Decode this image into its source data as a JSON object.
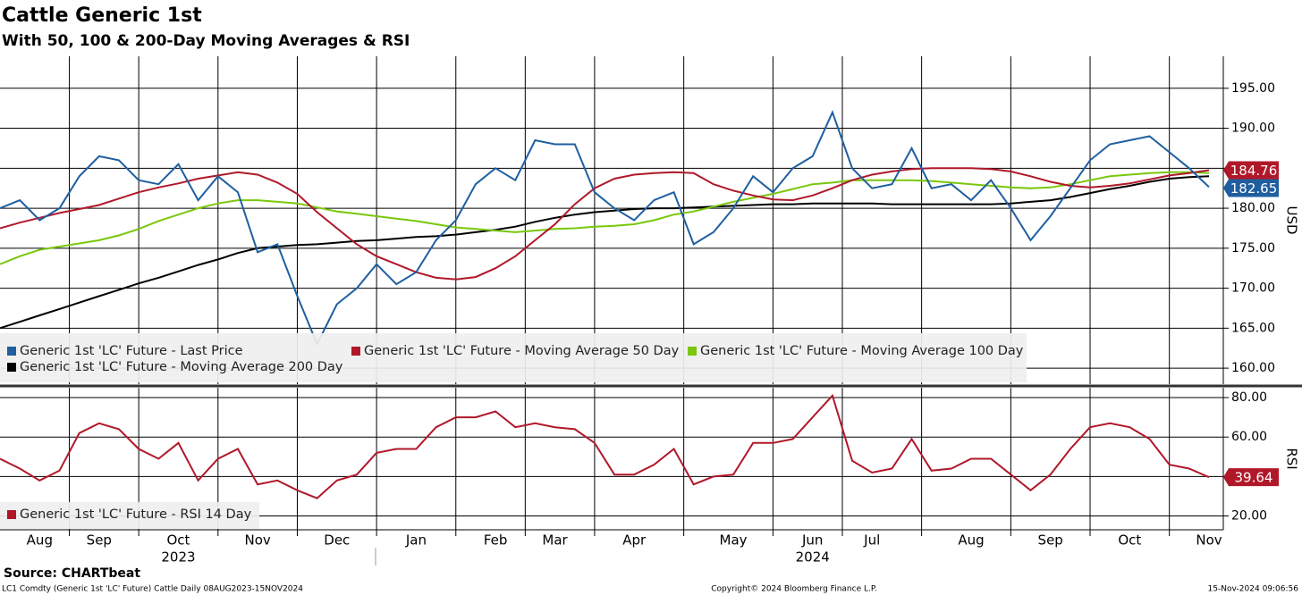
{
  "chart_data": [
    {
      "type": "line",
      "title": "Cattle Generic 1st",
      "subtitle": "With 50, 100 & 200-Day Moving Averages & RSI",
      "ylabel": "USD",
      "ylim": [
        158,
        199
      ],
      "yticks": [
        {
          "value": 160,
          "label": "160.00"
        },
        {
          "value": 165,
          "label": "165.00"
        },
        {
          "value": 170,
          "label": "170.00"
        },
        {
          "value": 175,
          "label": "175.00"
        },
        {
          "value": 180,
          "label": "180.00"
        },
        {
          "value": 185,
          "label": "185.00"
        },
        {
          "value": 190,
          "label": "190.00"
        },
        {
          "value": 195,
          "label": "195.00"
        }
      ],
      "grid": true,
      "series": [
        {
          "name": "Generic 1st 'LC' Future - Last Price",
          "color": "#1f5fa0",
          "last_label": true,
          "values": [
            180,
            181,
            178.5,
            180,
            184,
            186.5,
            186,
            183.5,
            183,
            185.5,
            181,
            184,
            182,
            174.5,
            175.5,
            169,
            163,
            168,
            170,
            173,
            170.5,
            172,
            176,
            178.5,
            183,
            185,
            183.5,
            188.5,
            188,
            188,
            182,
            180,
            178.5,
            181,
            182,
            175.5,
            177,
            180,
            184,
            182,
            185,
            186.5,
            192,
            185,
            182.5,
            183,
            187.5,
            182.5,
            183,
            181,
            183.5,
            180,
            176,
            179,
            182.5,
            186,
            188,
            188.5,
            189,
            187,
            185,
            182.65
          ]
        },
        {
          "name": "Generic 1st 'LC' Future - Moving Average 50 Day",
          "color": "#b0182a",
          "last_label": true,
          "values": [
            177.5,
            178.2,
            178.8,
            179.4,
            179.9,
            180.4,
            181.2,
            182,
            182.6,
            183.1,
            183.7,
            184.1,
            184.5,
            184.2,
            183.2,
            181.8,
            179.5,
            177.5,
            175.5,
            174,
            173,
            172,
            171.3,
            171.1,
            171.4,
            172.5,
            174,
            176,
            178,
            180.5,
            182.5,
            183.7,
            184.2,
            184.4,
            184.5,
            184.4,
            183,
            182.2,
            181.6,
            181.1,
            181,
            181.6,
            182.5,
            183.5,
            184.2,
            184.6,
            184.9,
            185,
            185,
            185,
            184.9,
            184.6,
            184,
            183.3,
            182.8,
            182.6,
            182.8,
            183.1,
            183.6,
            184.1,
            184.4,
            184.76
          ]
        },
        {
          "name": "Generic 1st 'LC' Future - Moving Average 100 Day",
          "color": "#7ac70c",
          "last_label": false,
          "values": [
            173,
            174,
            174.8,
            175.2,
            175.6,
            176,
            176.6,
            177.4,
            178.4,
            179.2,
            180,
            180.6,
            181,
            181,
            180.8,
            180.6,
            180.1,
            179.6,
            179.3,
            179,
            178.7,
            178.4,
            178,
            177.6,
            177.4,
            177.2,
            177,
            177.2,
            177.4,
            177.5,
            177.7,
            177.8,
            178,
            178.5,
            179.2,
            179.6,
            180.2,
            180.8,
            181.3,
            181.8,
            182.4,
            183,
            183.2,
            183.5,
            183.5,
            183.5,
            183.5,
            183.4,
            183.2,
            183,
            182.8,
            182.6,
            182.5,
            182.6,
            183,
            183.5,
            184,
            184.2,
            184.4,
            184.5,
            184.5,
            184.4
          ]
        },
        {
          "name": "Generic 1st 'LC' Future - Moving Average 200 Day",
          "color": "#000000",
          "last_label": false,
          "values": [
            165,
            165.8,
            166.6,
            167.4,
            168.2,
            169,
            169.8,
            170.6,
            171.3,
            172.1,
            172.9,
            173.6,
            174.4,
            175,
            175.2,
            175.4,
            175.5,
            175.7,
            175.9,
            176,
            176.2,
            176.4,
            176.5,
            176.7,
            177,
            177.3,
            177.7,
            178.3,
            178.8,
            179.2,
            179.5,
            179.7,
            179.9,
            180,
            180,
            180.1,
            180.2,
            180.3,
            180.4,
            180.5,
            180.5,
            180.6,
            180.6,
            180.6,
            180.6,
            180.5,
            180.5,
            180.5,
            180.5,
            180.5,
            180.5,
            180.6,
            180.8,
            181,
            181.4,
            181.9,
            182.4,
            182.8,
            183.3,
            183.7,
            183.9,
            184
          ]
        }
      ]
    },
    {
      "type": "line",
      "ylabel": "RSI",
      "ylim": [
        13,
        85
      ],
      "yticks": [
        {
          "value": 20,
          "label": "20.00"
        },
        {
          "value": 40,
          "label": "40.00"
        },
        {
          "value": 60,
          "label": "60.00"
        },
        {
          "value": 80,
          "label": "80.00"
        }
      ],
      "grid": true,
      "categories": [
        null,
        null,
        "Aug",
        null,
        null,
        "Sep",
        null,
        null,
        null,
        "Oct",
        null,
        null,
        null,
        "Nov",
        null,
        null,
        null,
        "Dec",
        null,
        null,
        null,
        "Jan",
        null,
        null,
        null,
        "Feb",
        null,
        null,
        "Mar",
        null,
        null,
        null,
        "Apr",
        null,
        null,
        null,
        null,
        "May",
        null,
        null,
        null,
        "Jun",
        null,
        null,
        "Jul",
        null,
        null,
        null,
        null,
        "Aug",
        null,
        null,
        null,
        "Sep",
        null,
        null,
        null,
        "Oct",
        null,
        null,
        null,
        "Nov"
      ],
      "year_labels": [
        null,
        null,
        null,
        null,
        null,
        null,
        null,
        null,
        null,
        "2023",
        null,
        null,
        null,
        null,
        null,
        null,
        null,
        null,
        null,
        null,
        null,
        null,
        null,
        null,
        null,
        null,
        null,
        null,
        null,
        null,
        null,
        null,
        null,
        null,
        null,
        null,
        null,
        null,
        null,
        null,
        null,
        "2024",
        null,
        null,
        null,
        null,
        null,
        null,
        null,
        null,
        null,
        null,
        null,
        null,
        null,
        null,
        null,
        null,
        null,
        null,
        null,
        null
      ],
      "series": [
        {
          "name": "Generic 1st 'LC' Future - RSI 14 Day",
          "color": "#b0182a",
          "last_label": true,
          "values": [
            49,
            44,
            38,
            43,
            62,
            67,
            64,
            54,
            49,
            57,
            38,
            49,
            54,
            36,
            38,
            33,
            29,
            38,
            41,
            52,
            54,
            54,
            65,
            70,
            70,
            73,
            65,
            67,
            65,
            64,
            57,
            41,
            41,
            46,
            54,
            36,
            40,
            41,
            57,
            57,
            59,
            70,
            81,
            48,
            42,
            44,
            59,
            43,
            44,
            49,
            49,
            41,
            33,
            41,
            54,
            65,
            67,
            65,
            59,
            46,
            44,
            39.64
          ]
        }
      ]
    }
  ],
  "source": "Source: CHARTbeat",
  "footer": {
    "left": "LC1 Comdty (Generic 1st 'LC' Future) Cattle  Daily 08AUG2023-15NOV2024",
    "center": "Copyright© 2024 Bloomberg Finance L.P.",
    "right": "15-Nov-2024 09:06:56"
  }
}
